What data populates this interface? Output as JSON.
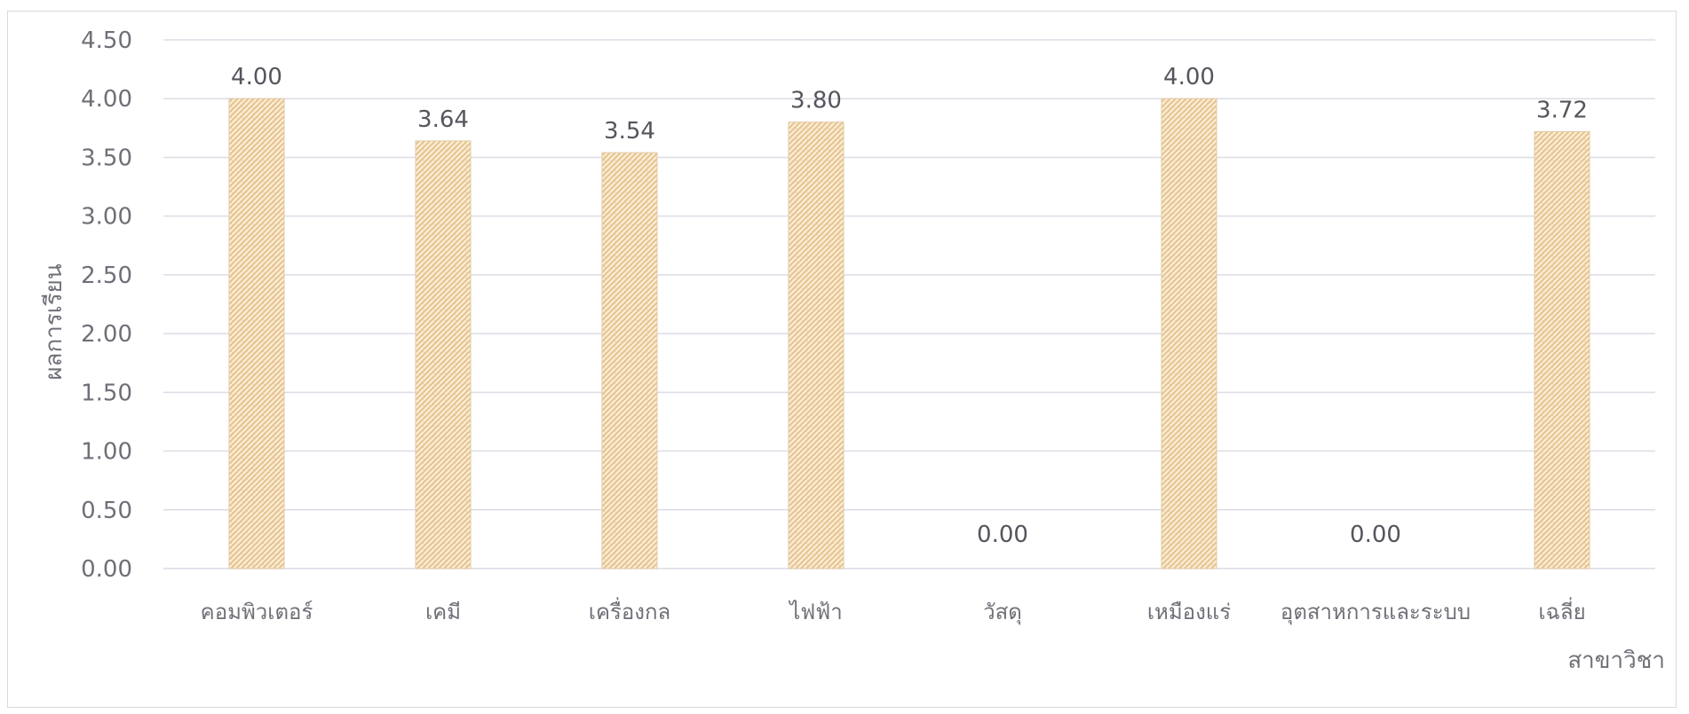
{
  "chart_data": {
    "type": "bar",
    "title": "",
    "xlabel": "สาขาวิชา",
    "ylabel": "ผลการเรียน",
    "categories": [
      "คอมพิวเตอร์",
      "เคมี",
      "เครื่องกล",
      "ไฟฟ้า",
      "วัสดุ",
      "เหมืองแร่",
      "อุตสาหการและระบบ",
      "เฉลี่ย"
    ],
    "values": [
      4.0,
      3.64,
      3.54,
      3.8,
      0.0,
      4.0,
      0.0,
      3.72
    ],
    "data_labels": [
      "4.00",
      "3.64",
      "3.54",
      "3.80",
      "0.00",
      "4.00",
      "0.00",
      "3.72"
    ],
    "ylim": [
      0,
      4.5
    ],
    "yticks": [
      "0.00",
      "0.50",
      "1.00",
      "1.50",
      "2.00",
      "2.50",
      "3.00",
      "3.50",
      "4.00",
      "4.50"
    ],
    "grid": true,
    "legend": "none",
    "bar_color": "#e9c897",
    "bar_pattern_color": "#fff6e6"
  }
}
